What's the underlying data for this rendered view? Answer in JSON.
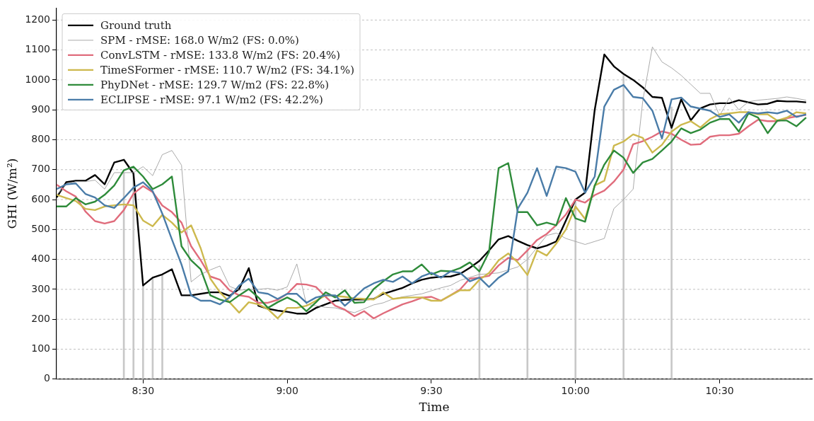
{
  "chart_data": {
    "type": "line",
    "xlabel": "Time",
    "ylabel": "GHI (W/m²)",
    "x": [
      8.2,
      8.2333,
      8.2667,
      8.3,
      8.3333,
      8.3667,
      8.4,
      8.4333,
      8.4667,
      8.5,
      8.5333,
      8.5667,
      8.6,
      8.6333,
      8.6667,
      8.7,
      8.7333,
      8.7667,
      8.8,
      8.8333,
      8.8667,
      8.9,
      8.9333,
      8.9667,
      9,
      9.0333,
      9.0667,
      9.1,
      9.1333,
      9.1667,
      9.2,
      9.2333,
      9.2667,
      9.3,
      9.3333,
      9.3667,
      9.4,
      9.4333,
      9.4667,
      9.5,
      9.5333,
      9.5667,
      9.6,
      9.6333,
      9.6667,
      9.7,
      9.7333,
      9.7667,
      9.8,
      9.8333,
      9.8667,
      9.9,
      9.9333,
      9.9667,
      10,
      10.0333,
      10.0667,
      10.1,
      10.1333,
      10.1667,
      10.2,
      10.2333,
      10.2667,
      10.3,
      10.3333,
      10.3667,
      10.4,
      10.4333,
      10.4667,
      10.5,
      10.5333,
      10.5667,
      10.6,
      10.6333,
      10.6667,
      10.7,
      10.7333,
      10.7667,
      10.8
    ],
    "xlim": [
      8.2,
      10.82
    ],
    "xticks": [
      {
        "value": 8.5,
        "label": "8:30"
      },
      {
        "value": 9,
        "label": "9:00"
      },
      {
        "value": 9.5,
        "label": "9:30"
      },
      {
        "value": 10,
        "label": "10:00"
      },
      {
        "value": 10.5,
        "label": "10:30"
      }
    ],
    "ylim": [
      0,
      1240
    ],
    "yticks": [
      0,
      100,
      200,
      300,
      400,
      500,
      600,
      700,
      800,
      900,
      1000,
      1100,
      1200
    ],
    "grid": "y",
    "legend": "top left",
    "series": [
      {
        "type": "bar",
        "color": "#c8c8c8",
        "x": [
          8.4333,
          8.4667,
          8.5,
          8.5333,
          8.5667,
          9.6667,
          9.8333,
          10,
          10.1667,
          10.3333
        ],
        "values": [
          690,
          687,
          313,
          339,
          350,
          380,
          440,
          600,
          1015,
          910
        ]
      },
      {
        "name": "Ground truth",
        "color": "#000000",
        "values": [
          607,
          658,
          663,
          663,
          682,
          651,
          724,
          733,
          687,
          313,
          339,
          350,
          367,
          280,
          280,
          285,
          290,
          290,
          278,
          301,
          371,
          245,
          235,
          229,
          225,
          219,
          219,
          238,
          250,
          262,
          265,
          266,
          266,
          268,
          285,
          295,
          305,
          320,
          332,
          339,
          342,
          343,
          352,
          372,
          395,
          430,
          467,
          478,
          462,
          448,
          437,
          446,
          460,
          530,
          600,
          623,
          900,
          1085,
          1045,
          1020,
          1000,
          975,
          943,
          940,
          840,
          935,
          865,
          905,
          918,
          922,
          922,
          932,
          925,
          918,
          920,
          930,
          928,
          928,
          925
        ]
      },
      {
        "name": "SPM - rMSE: 168.0 W/m2 (FS: 0.0%)",
        "color": "#a0a0a0",
        "values": [
          615,
          650,
          660,
          660,
          665,
          635,
          690,
          690,
          690,
          710,
          680,
          750,
          764,
          715,
          325,
          350,
          365,
          378,
          310,
          297,
          300,
          300,
          303,
          297,
          308,
          385,
          250,
          245,
          240,
          238,
          230,
          222,
          235,
          248,
          255,
          268,
          275,
          280,
          285,
          295,
          305,
          313,
          330,
          340,
          350,
          352,
          355,
          365,
          375,
          400,
          440,
          480,
          488,
          470,
          460,
          450,
          460,
          470,
          570,
          600,
          635,
          930,
          1110,
          1060,
          1040,
          1015,
          985,
          955,
          955,
          880,
          940,
          900,
          927,
          932,
          935,
          938,
          943,
          938,
          932
        ]
      },
      {
        "name": "ConvLSTM - rMSE: 133.8 W/m2 (FS: 20.4%)",
        "color": "#e06c7c",
        "values": [
          650,
          628,
          610,
          560,
          528,
          520,
          528,
          565,
          620,
          645,
          625,
          580,
          558,
          523,
          444,
          397,
          343,
          332,
          297,
          280,
          275,
          255,
          255,
          265,
          285,
          318,
          316,
          308,
          275,
          245,
          232,
          210,
          227,
          203,
          220,
          235,
          250,
          260,
          272,
          275,
          262,
          280,
          300,
          336,
          339,
          345,
          380,
          405,
          398,
          430,
          465,
          485,
          515,
          550,
          600,
          590,
          615,
          630,
          660,
          700,
          785,
          795,
          810,
          828,
          820,
          800,
          783,
          785,
          810,
          815,
          815,
          820,
          845,
          867,
          862,
          862,
          872,
          878,
          883
        ]
      },
      {
        "name": "TimeSFormer - rMSE: 110.7 W/m2 (FS: 34.1%)",
        "color": "#cdb94e",
        "values": [
          616,
          605,
          595,
          569,
          565,
          577,
          581,
          584,
          581,
          530,
          511,
          549,
          523,
          490,
          514,
          437,
          336,
          290,
          257,
          222,
          257,
          250,
          234,
          203,
          238,
          238,
          245,
          262,
          280,
          278,
          275,
          270,
          268,
          266,
          290,
          268,
          272,
          273,
          273,
          262,
          262,
          280,
          297,
          297,
          332,
          355,
          397,
          420,
          390,
          348,
          430,
          413,
          453,
          500,
          577,
          535,
          647,
          663,
          780,
          794,
          818,
          806,
          757,
          783,
          827,
          850,
          862,
          841,
          869,
          885,
          888,
          892,
          892,
          885,
          885,
          864,
          874,
          892,
          888
        ]
      },
      {
        "name": "PhyDNet - rMSE: 129.7 W/m2 (FS: 22.8%)",
        "color": "#2e8b3a",
        "values": [
          577,
          577,
          605,
          584,
          593,
          616,
          647,
          698,
          710,
          677,
          635,
          651,
          677,
          444,
          397,
          367,
          280,
          266,
          257,
          280,
          301,
          273,
          238,
          257,
          273,
          257,
          227,
          257,
          290,
          273,
          297,
          255,
          257,
          301,
          327,
          350,
          360,
          360,
          383,
          350,
          362,
          360,
          371,
          390,
          360,
          425,
          705,
          722,
          558,
          558,
          514,
          523,
          514,
          605,
          537,
          526,
          647,
          717,
          764,
          740,
          689,
          724,
          736,
          764,
          794,
          838,
          822,
          834,
          857,
          869,
          869,
          827,
          888,
          874,
          822,
          864,
          864,
          845,
          874
        ]
      },
      {
        "name": "ECLIPSE - rMSE: 97.1 W/m2 (FS: 42.2%)",
        "color": "#4a7ca8",
        "values": [
          635,
          651,
          654,
          619,
          607,
          581,
          572,
          605,
          640,
          658,
          628,
          553,
          467,
          383,
          280,
          262,
          262,
          250,
          273,
          313,
          336,
          290,
          285,
          268,
          285,
          285,
          255,
          273,
          280,
          280,
          245,
          273,
          303,
          320,
          332,
          325,
          343,
          320,
          343,
          355,
          339,
          360,
          355,
          327,
          339,
          308,
          339,
          360,
          570,
          623,
          705,
          612,
          710,
          705,
          693,
          623,
          677,
          911,
          967,
          983,
          943,
          939,
          897,
          804,
          935,
          941,
          911,
          904,
          897,
          876,
          885,
          857,
          892,
          888,
          892,
          888,
          897,
          876,
          885
        ]
      }
    ]
  }
}
